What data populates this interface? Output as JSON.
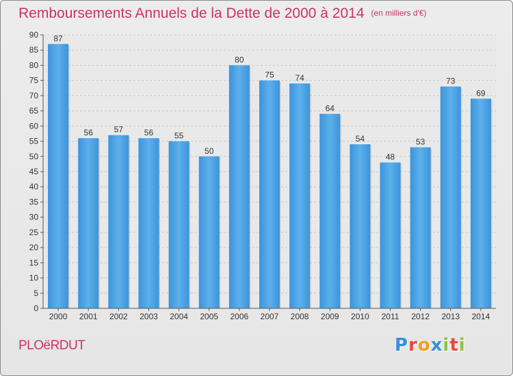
{
  "title": "Remboursements Annuels de la Dette de 2000 à 2014",
  "unit_note": "(en milliers d'€)",
  "commune": "PLOëRDUT",
  "logo": {
    "letters": [
      {
        "ch": "P",
        "color": "#3a8fd6"
      },
      {
        "ch": "r",
        "color": "#e24a3c"
      },
      {
        "ch": "o",
        "color": "#f0a020"
      },
      {
        "ch": "x",
        "color": "#3a8fd6"
      },
      {
        "ch": "i",
        "color": "#8bc34a"
      },
      {
        "ch": "t",
        "color": "#e24a3c"
      },
      {
        "ch": "i",
        "color": "#8bc34a"
      }
    ]
  },
  "chart_data": {
    "type": "bar",
    "title": "Remboursements Annuels de la Dette de 2000 à 2014",
    "xlabel": "",
    "ylabel": "",
    "categories": [
      "2000",
      "2001",
      "2002",
      "2003",
      "2004",
      "2005",
      "2006",
      "2007",
      "2008",
      "2009",
      "2010",
      "2011",
      "2012",
      "2013",
      "2014"
    ],
    "values": [
      87,
      56,
      57,
      56,
      55,
      50,
      80,
      75,
      74,
      64,
      54,
      48,
      53,
      73,
      69
    ],
    "ylim": [
      0,
      90
    ],
    "yticks": [
      0,
      5,
      10,
      15,
      20,
      25,
      30,
      35,
      40,
      45,
      50,
      55,
      60,
      65,
      70,
      75,
      80,
      85,
      90
    ],
    "grid": true,
    "bar_color": "#3d94dc",
    "bar_color_light": "#5db0ea",
    "label_color": "#333333"
  }
}
